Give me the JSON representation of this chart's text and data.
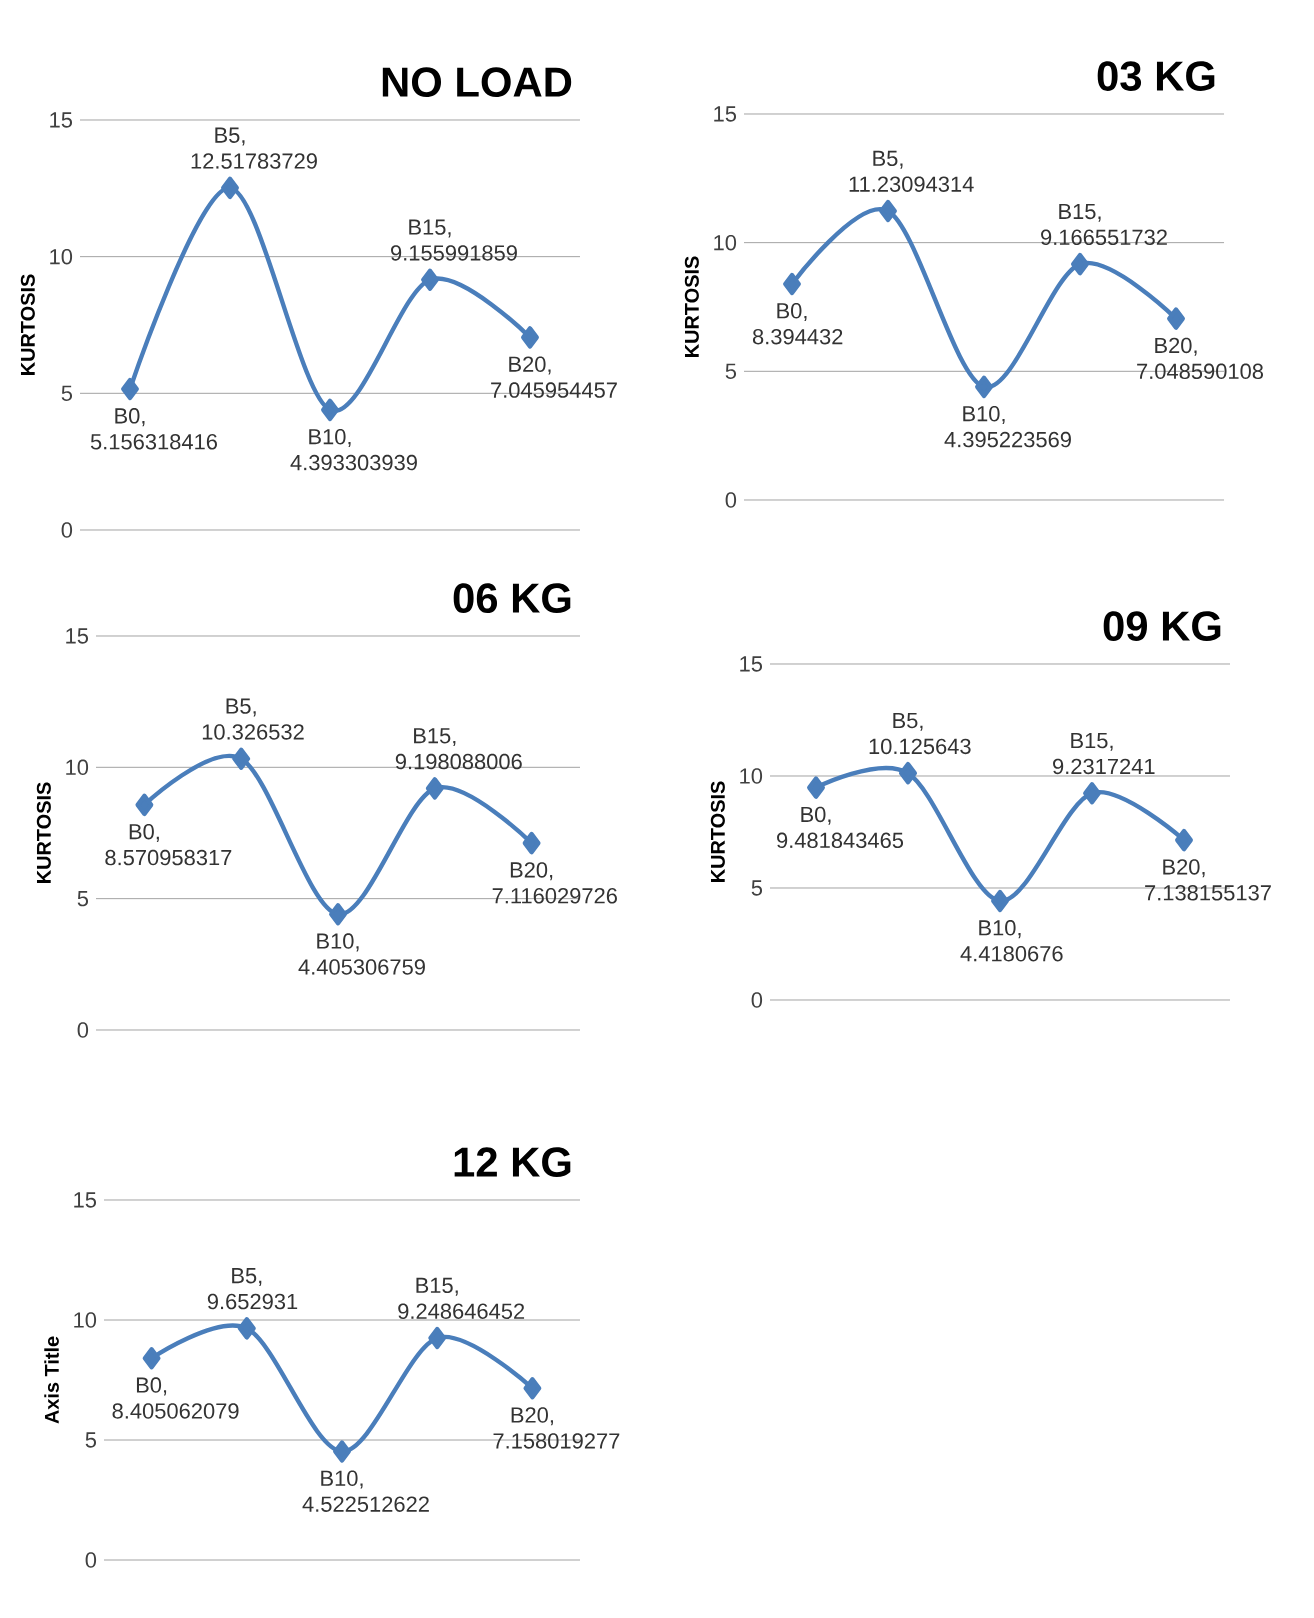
{
  "chart_data": [
    {
      "type": "line",
      "title": "NO LOAD",
      "ylabel": "KURTOSIS",
      "categories": [
        null,
        null,
        null,
        null,
        null
      ],
      "values": [
        5.156318416,
        12.51783729,
        4.393303939,
        9.155991859,
        7.045954457
      ],
      "value_labels": [
        "B0, 5.156318416",
        "B5, 12.51783729",
        "B10, 4.393303939",
        "B15, 9.155991859",
        "B20, 7.045954457"
      ],
      "color": "#4a7ebb",
      "ylim": [
        0,
        15
      ],
      "yticks": [
        0,
        5,
        10,
        15
      ],
      "grid": "y",
      "marker": "diamond",
      "tick_labels": "y"
    },
    {
      "type": "line",
      "title": "03 KG",
      "ylabel": "KURTOSIS",
      "categories": [
        null,
        null,
        null,
        null,
        null
      ],
      "values": [
        8.394432,
        11.23094314,
        4.395223569,
        9.166551732,
        7.048590108
      ],
      "value_labels": [
        "B0, 8.394432",
        "B5, 11.23094314",
        "B10, 4.395223569",
        "B15, 9.166551732",
        "B20, 7.048590108"
      ],
      "color": "#4a7ebb",
      "ylim": [
        0,
        15
      ],
      "yticks": [
        0,
        5,
        10,
        15
      ],
      "grid": "y",
      "marker": "diamond",
      "tick_labels": "y"
    },
    {
      "type": "line",
      "title": "06 KG",
      "ylabel": "KURTOSIS",
      "categories": [
        null,
        null,
        null,
        null,
        null
      ],
      "values": [
        8.570958317,
        10.326532,
        4.405306759,
        9.198088006,
        7.116029726
      ],
      "value_labels": [
        "B0, 8.570958317",
        "B5, 10.326532",
        "B10, 4.405306759",
        "B15, 9.198088006",
        "B20, 7.116029726"
      ],
      "color": "#4a7ebb",
      "ylim": [
        0,
        15
      ],
      "yticks": [
        0,
        5,
        10,
        15
      ],
      "grid": "y",
      "marker": "diamond",
      "tick_labels": "y"
    },
    {
      "type": "line",
      "title": "09 KG",
      "ylabel": "KURTOSIS",
      "categories": [
        null,
        null,
        null,
        null,
        null
      ],
      "values": [
        9.481843465,
        10.125643,
        4.4180676,
        9.2317241,
        7.138155137
      ],
      "value_labels": [
        "B0, 9.481843465",
        "B5, 10.125643",
        "B10, 4.4180676",
        "B15, 9.2317241",
        "B20, 7.138155137"
      ],
      "color": "#4a7ebb",
      "ylim": [
        0,
        15
      ],
      "yticks": [
        0,
        5,
        10,
        15
      ],
      "grid": "y",
      "marker": "diamond",
      "tick_labels": "y"
    },
    {
      "type": "line",
      "title": "12 KG",
      "ylabel": "Axis Title",
      "categories": [
        null,
        null,
        null,
        null,
        null
      ],
      "values": [
        8.405062079,
        9.652931,
        4.522512622,
        9.248646452,
        7.158019277
      ],
      "value_labels": [
        "B0, 8.405062079",
        "B5, 9.652931",
        "B10, 4.522512622",
        "B15, 9.248646452",
        "B20, 7.158019277"
      ],
      "color": "#4a7ebb",
      "ylim": [
        0,
        15
      ],
      "yticks": [
        0,
        5,
        10,
        15
      ],
      "grid": "y",
      "marker": "diamond",
      "tick_labels": "y"
    }
  ]
}
